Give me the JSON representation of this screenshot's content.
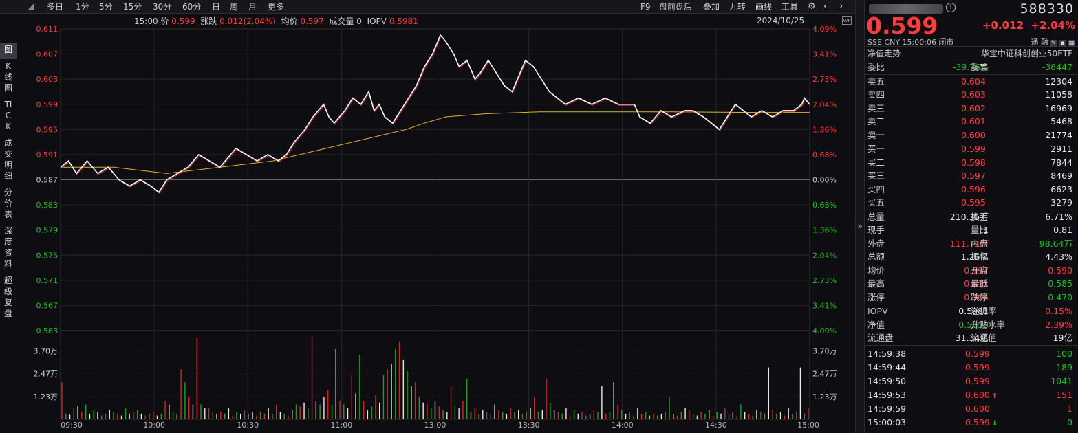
{
  "toolbar": {
    "left": [
      "多日",
      "1分",
      "5分",
      "15分",
      "30分",
      "60分",
      "日",
      "周",
      "月",
      "更多"
    ],
    "right": [
      "F9",
      "盘前盘后",
      "叠加",
      "九转",
      "画线",
      "工具"
    ]
  },
  "vertical_tabs": [
    "图",
    "K线图",
    "TICK",
    "成交明细",
    "分价表",
    "深度资料",
    "超级复盘"
  ],
  "info_line": {
    "time": "15:00",
    "price_label": "价",
    "price": "0.599",
    "change_label": "涨跌",
    "change": "0.012(2.04%)",
    "avg_label": "均价",
    "avg": "0.597",
    "volume_label": "成交量",
    "volume": "0",
    "iopv_label": "IOPV",
    "iopv": "0.5981",
    "date": "2024/10/25"
  },
  "chart_data": {
    "type": "line",
    "x_labels": [
      "09:30",
      "10:00",
      "10:30",
      "11:00",
      "13:00",
      "13:30",
      "14:00",
      "14:30",
      "15:00"
    ],
    "y_price_ticks": [
      "0.611",
      "0.607",
      "0.603",
      "0.599",
      "0.595",
      "0.591",
      "0.587",
      "0.583",
      "0.579",
      "0.575",
      "0.571",
      "0.567",
      "0.563"
    ],
    "y_pct_ticks": [
      "4.09%",
      "3.41%",
      "2.73%",
      "2.04%",
      "1.36%",
      "0.68%",
      "0.00%",
      "0.68%",
      "1.36%",
      "2.04%",
      "2.73%",
      "3.41%",
      "4.09%"
    ],
    "y_vol_ticks": [
      "3.70万",
      "2.47万",
      "1.23万"
    ],
    "ylim": [
      0.563,
      0.611
    ],
    "prev_close": 0.587,
    "price_points": [
      [
        0,
        0.589
      ],
      [
        3,
        0.59
      ],
      [
        6,
        0.588
      ],
      [
        10,
        0.59
      ],
      [
        14,
        0.588
      ],
      [
        18,
        0.589
      ],
      [
        22,
        0.587
      ],
      [
        26,
        0.586
      ],
      [
        30,
        0.587
      ],
      [
        34,
        0.586
      ],
      [
        37,
        0.585
      ],
      [
        40,
        0.587
      ],
      [
        44,
        0.588
      ],
      [
        48,
        0.589
      ],
      [
        52,
        0.591
      ],
      [
        56,
        0.59
      ],
      [
        60,
        0.589
      ],
      [
        64,
        0.591
      ],
      [
        66,
        0.592
      ],
      [
        70,
        0.591
      ],
      [
        74,
        0.59
      ],
      [
        78,
        0.591
      ],
      [
        82,
        0.59
      ],
      [
        85,
        0.591
      ],
      [
        88,
        0.593
      ],
      [
        92,
        0.595
      ],
      [
        95,
        0.597
      ],
      [
        99,
        0.599
      ],
      [
        101,
        0.597
      ],
      [
        103,
        0.596
      ],
      [
        107,
        0.598
      ],
      [
        110,
        0.6
      ],
      [
        113,
        0.599
      ],
      [
        116,
        0.601
      ],
      [
        118,
        0.598
      ],
      [
        120,
        0.599
      ],
      [
        122,
        0.597
      ],
      [
        125,
        0.596
      ],
      [
        128,
        0.598
      ],
      [
        131,
        0.6
      ],
      [
        134,
        0.602
      ],
      [
        137,
        0.605
      ],
      [
        140,
        0.607
      ],
      [
        143,
        0.61
      ],
      [
        145,
        0.609
      ],
      [
        148,
        0.607
      ],
      [
        150,
        0.605
      ],
      [
        153,
        0.606
      ],
      [
        156,
        0.603
      ],
      [
        158,
        0.604
      ],
      [
        161,
        0.606
      ],
      [
        164,
        0.604
      ],
      [
        167,
        0.602
      ],
      [
        170,
        0.601
      ],
      [
        172,
        0.603
      ],
      [
        175,
        0.606
      ],
      [
        178,
        0.605
      ],
      [
        181,
        0.603
      ],
      [
        184,
        0.601
      ],
      [
        187,
        0.6
      ],
      [
        190,
        0.599
      ],
      [
        195,
        0.6
      ],
      [
        200,
        0.599
      ],
      [
        205,
        0.6
      ],
      [
        210,
        0.599
      ],
      [
        213,
        0.599
      ],
      [
        216,
        0.599
      ],
      [
        218,
        0.597
      ],
      [
        222,
        0.596
      ],
      [
        226,
        0.598
      ],
      [
        230,
        0.597
      ],
      [
        235,
        0.598
      ],
      [
        238,
        0.598
      ],
      [
        242,
        0.597
      ],
      [
        245,
        0.596
      ],
      [
        248,
        0.595
      ],
      [
        251,
        0.597
      ],
      [
        254,
        0.599
      ],
      [
        257,
        0.598
      ],
      [
        260,
        0.597
      ],
      [
        264,
        0.598
      ],
      [
        268,
        0.597
      ],
      [
        272,
        0.598
      ],
      [
        276,
        0.598
      ],
      [
        279,
        0.599
      ],
      [
        280,
        0.6
      ],
      [
        282,
        0.599
      ]
    ],
    "avg_points": [
      [
        0,
        0.589
      ],
      [
        20,
        0.589
      ],
      [
        40,
        0.588
      ],
      [
        60,
        0.589
      ],
      [
        80,
        0.59
      ],
      [
        90,
        0.591
      ],
      [
        100,
        0.592
      ],
      [
        110,
        0.593
      ],
      [
        120,
        0.594
      ],
      [
        130,
        0.595
      ],
      [
        137,
        0.596
      ],
      [
        145,
        0.597
      ],
      [
        160,
        0.5975
      ],
      [
        180,
        0.5978
      ],
      [
        200,
        0.5978
      ],
      [
        230,
        0.5978
      ],
      [
        260,
        0.5977
      ],
      [
        282,
        0.5977
      ]
    ],
    "max_volume": 37000,
    "volumes": [
      [
        "r",
        20000
      ],
      [
        "g",
        3000
      ],
      [
        "w",
        2500
      ],
      [
        "g",
        6000
      ],
      [
        "w",
        7000
      ],
      [
        "r",
        4000
      ],
      [
        "g",
        8000
      ],
      [
        "w",
        3000
      ],
      [
        "g",
        5000
      ],
      [
        "w",
        4000
      ],
      [
        "g",
        2000
      ],
      [
        "r",
        3000
      ],
      [
        "w",
        5000
      ],
      [
        "g",
        4000
      ],
      [
        "r",
        3000
      ],
      [
        "w",
        2000
      ],
      [
        "g",
        6000
      ],
      [
        "w",
        3000
      ],
      [
        "r",
        4000
      ],
      [
        "g",
        5000
      ],
      [
        "w",
        3000
      ],
      [
        "r",
        2000
      ],
      [
        "g",
        3000
      ],
      [
        "r",
        4000
      ],
      [
        "w",
        2000
      ],
      [
        "g",
        3000
      ],
      [
        "r",
        10000
      ],
      [
        "w",
        8000
      ],
      [
        "g",
        4000
      ],
      [
        "w",
        3000
      ],
      [
        "r",
        27000
      ],
      [
        "g",
        20000
      ],
      [
        "r",
        12000
      ],
      [
        "w",
        8000
      ],
      [
        "r",
        44000
      ],
      [
        "g",
        8000
      ],
      [
        "w",
        6000
      ],
      [
        "r",
        6000
      ],
      [
        "g",
        4000
      ],
      [
        "w",
        3000
      ],
      [
        "r",
        4000
      ],
      [
        "g",
        3000
      ],
      [
        "w",
        6000
      ],
      [
        "r",
        2000
      ],
      [
        "g",
        4000
      ],
      [
        "w",
        3000
      ],
      [
        "r",
        5000
      ],
      [
        "g",
        3000
      ],
      [
        "w",
        4000
      ],
      [
        "r",
        2000
      ],
      [
        "g",
        4000
      ],
      [
        "r",
        3000
      ],
      [
        "w",
        6000
      ],
      [
        "g",
        3000
      ],
      [
        "r",
        8000
      ],
      [
        "w",
        4000
      ],
      [
        "g",
        3000
      ],
      [
        "r",
        2000
      ],
      [
        "w",
        5000
      ],
      [
        "g",
        8000
      ],
      [
        "r",
        7000
      ],
      [
        "w",
        9000
      ],
      [
        "g",
        6000
      ],
      [
        "r",
        45000
      ],
      [
        "w",
        10000
      ],
      [
        "g",
        8000
      ],
      [
        "w",
        12000
      ],
      [
        "r",
        16000
      ],
      [
        "g",
        8000
      ],
      [
        "w",
        38000
      ],
      [
        "r",
        10000
      ],
      [
        "g",
        8000
      ],
      [
        "w",
        6000
      ],
      [
        "r",
        24000
      ],
      [
        "w",
        14000
      ],
      [
        "g",
        35000
      ],
      [
        "r",
        10000
      ],
      [
        "w",
        5000
      ],
      [
        "g",
        7000
      ],
      [
        "r",
        13000
      ],
      [
        "w",
        9000
      ],
      [
        "g",
        24000
      ],
      [
        "r",
        27000
      ],
      [
        "w",
        30000
      ],
      [
        "g",
        38000
      ],
      [
        "r",
        42000
      ],
      [
        "w",
        32000
      ],
      [
        "g",
        26000
      ],
      [
        "w",
        18000
      ],
      [
        "r",
        20000
      ],
      [
        "g",
        12000
      ],
      [
        "w",
        9000
      ],
      [
        "r",
        8000
      ],
      [
        "g",
        6000
      ],
      [
        "w",
        10000
      ],
      [
        "r",
        7000
      ],
      [
        "g",
        5000
      ],
      [
        "w",
        4000
      ],
      [
        "r",
        18000
      ],
      [
        "g",
        8000
      ],
      [
        "w",
        6000
      ],
      [
        "r",
        10000
      ],
      [
        "g",
        22000
      ],
      [
        "w",
        4000
      ],
      [
        "r",
        6000
      ],
      [
        "g",
        3000
      ],
      [
        "w",
        5000
      ],
      [
        "r",
        4000
      ],
      [
        "g",
        3000
      ],
      [
        "w",
        8000
      ],
      [
        "r",
        5000
      ],
      [
        "g",
        4000
      ],
      [
        "w",
        3000
      ],
      [
        "r",
        6000
      ],
      [
        "g",
        4000
      ],
      [
        "w",
        5000
      ],
      [
        "r",
        3000
      ],
      [
        "g",
        4000
      ],
      [
        "w",
        6000
      ],
      [
        "r",
        12000
      ],
      [
        "g",
        4000
      ],
      [
        "w",
        5000
      ],
      [
        "r",
        22000
      ],
      [
        "g",
        9000
      ],
      [
        "w",
        5000
      ],
      [
        "r",
        4000
      ],
      [
        "g",
        3000
      ],
      [
        "w",
        6000
      ],
      [
        "r",
        2000
      ],
      [
        "g",
        5000
      ],
      [
        "w",
        3000
      ],
      [
        "r",
        4000
      ],
      [
        "g",
        2000
      ],
      [
        "w",
        3000
      ],
      [
        "r",
        5000
      ],
      [
        "g",
        4000
      ],
      [
        "w",
        18000
      ],
      [
        "r",
        3000
      ],
      [
        "g",
        4000
      ],
      [
        "w",
        20000
      ],
      [
        "r",
        8000
      ],
      [
        "g",
        5000
      ],
      [
        "w",
        3000
      ],
      [
        "r",
        4000
      ],
      [
        "g",
        2000
      ],
      [
        "w",
        6000
      ],
      [
        "r",
        3000
      ],
      [
        "g",
        4000
      ],
      [
        "w",
        2000
      ],
      [
        "r",
        3000
      ],
      [
        "g",
        2000
      ],
      [
        "w",
        3000
      ],
      [
        "r",
        4000
      ],
      [
        "g",
        12000
      ],
      [
        "w",
        3000
      ],
      [
        "r",
        2000
      ],
      [
        "g",
        4000
      ],
      [
        "w",
        6000
      ],
      [
        "r",
        5000
      ],
      [
        "g",
        3000
      ],
      [
        "w",
        2000
      ],
      [
        "r",
        4000
      ],
      [
        "g",
        3000
      ],
      [
        "w",
        5000
      ],
      [
        "r",
        2000
      ],
      [
        "g",
        4000
      ],
      [
        "w",
        3000
      ],
      [
        "r",
        6000
      ],
      [
        "g",
        3000
      ],
      [
        "w",
        4000
      ],
      [
        "r",
        2000
      ],
      [
        "g",
        8000
      ],
      [
        "w",
        4000
      ],
      [
        "r",
        3000
      ],
      [
        "g",
        2000
      ],
      [
        "w",
        5000
      ],
      [
        "r",
        4000
      ],
      [
        "g",
        3000
      ],
      [
        "w",
        28000
      ],
      [
        "r",
        5000
      ],
      [
        "g",
        3000
      ],
      [
        "w",
        4000
      ],
      [
        "r",
        2000
      ],
      [
        "w",
        6000
      ],
      [
        "g",
        3000
      ],
      [
        "r",
        4000
      ],
      [
        "w",
        28000
      ],
      [
        "g",
        3000
      ],
      [
        "r",
        6000
      ]
    ]
  },
  "panel": {
    "code": "588330",
    "price": "0.599",
    "change": "+0.012",
    "change_pct": "+2.04%",
    "meta": "SSE  CNY  15:00:06  闭市",
    "badges": "通  融",
    "nav_label": "净值走势",
    "nav_name": "华宝中证科创创业50ETF",
    "weibi": {
      "l1": "委比",
      "v1": "-39.76%",
      "l2": "委差",
      "v2": "-38447"
    },
    "asks": [
      [
        "卖五",
        "0.604",
        "12304"
      ],
      [
        "卖四",
        "0.603",
        "11058"
      ],
      [
        "卖三",
        "0.602",
        "16969"
      ],
      [
        "卖二",
        "0.601",
        "5468"
      ],
      [
        "卖一",
        "0.600",
        "21774"
      ]
    ],
    "bids": [
      [
        "买一",
        "0.599",
        "2911"
      ],
      [
        "买二",
        "0.598",
        "7844"
      ],
      [
        "买三",
        "0.597",
        "8469"
      ],
      [
        "买四",
        "0.596",
        "6623"
      ],
      [
        "买五",
        "0.595",
        "3279"
      ]
    ],
    "stats": [
      [
        [
          "总量",
          "210.35万",
          "white"
        ],
        [
          "换手",
          "6.71%",
          "white"
        ]
      ],
      [
        [
          "现手",
          "1",
          "white"
        ],
        [
          "量比",
          "0.81",
          "white"
        ]
      ],
      [
        [
          "外盘",
          "111.71万",
          "red"
        ],
        [
          "内盘",
          "98.64万",
          "green"
        ]
      ],
      [
        [
          "总额",
          "1.26亿",
          "white"
        ],
        [
          "振幅",
          "4.43%",
          "white"
        ]
      ],
      [
        [
          "均价",
          "0.597",
          "red"
        ],
        [
          "开盘",
          "0.590",
          "red"
        ]
      ],
      [
        [
          "最高",
          "0.611",
          "red"
        ],
        [
          "最低",
          "0.585",
          "green"
        ]
      ],
      [
        [
          "涨停",
          "0.704",
          "red"
        ],
        [
          "跌停",
          "0.470",
          "green"
        ]
      ]
    ],
    "iopv": [
      [
        [
          "IOPV",
          "0.5981",
          "white"
        ],
        [
          "溢折率",
          "0.15%",
          "red"
        ]
      ],
      [
        [
          "净值",
          "0.5850",
          "green"
        ],
        [
          "升贴水率",
          "2.39%",
          "red"
        ]
      ],
      [
        [
          "流通盘",
          "31.34亿",
          "white"
        ],
        [
          "流通值",
          "19亿",
          "white"
        ]
      ]
    ],
    "ticks": [
      [
        "14:59:38",
        "0.599",
        "red",
        "100",
        "green",
        ""
      ],
      [
        "14:59:44",
        "0.599",
        "red",
        "189",
        "green",
        ""
      ],
      [
        "14:59:50",
        "0.599",
        "red",
        "1041",
        "green",
        ""
      ],
      [
        "14:59:53",
        "0.600",
        "red",
        "151",
        "red",
        "up"
      ],
      [
        "14:59:59",
        "0.600",
        "red",
        "1",
        "red",
        ""
      ],
      [
        "15:00:03",
        "0.599",
        "red",
        "0",
        "green",
        "down"
      ]
    ]
  }
}
